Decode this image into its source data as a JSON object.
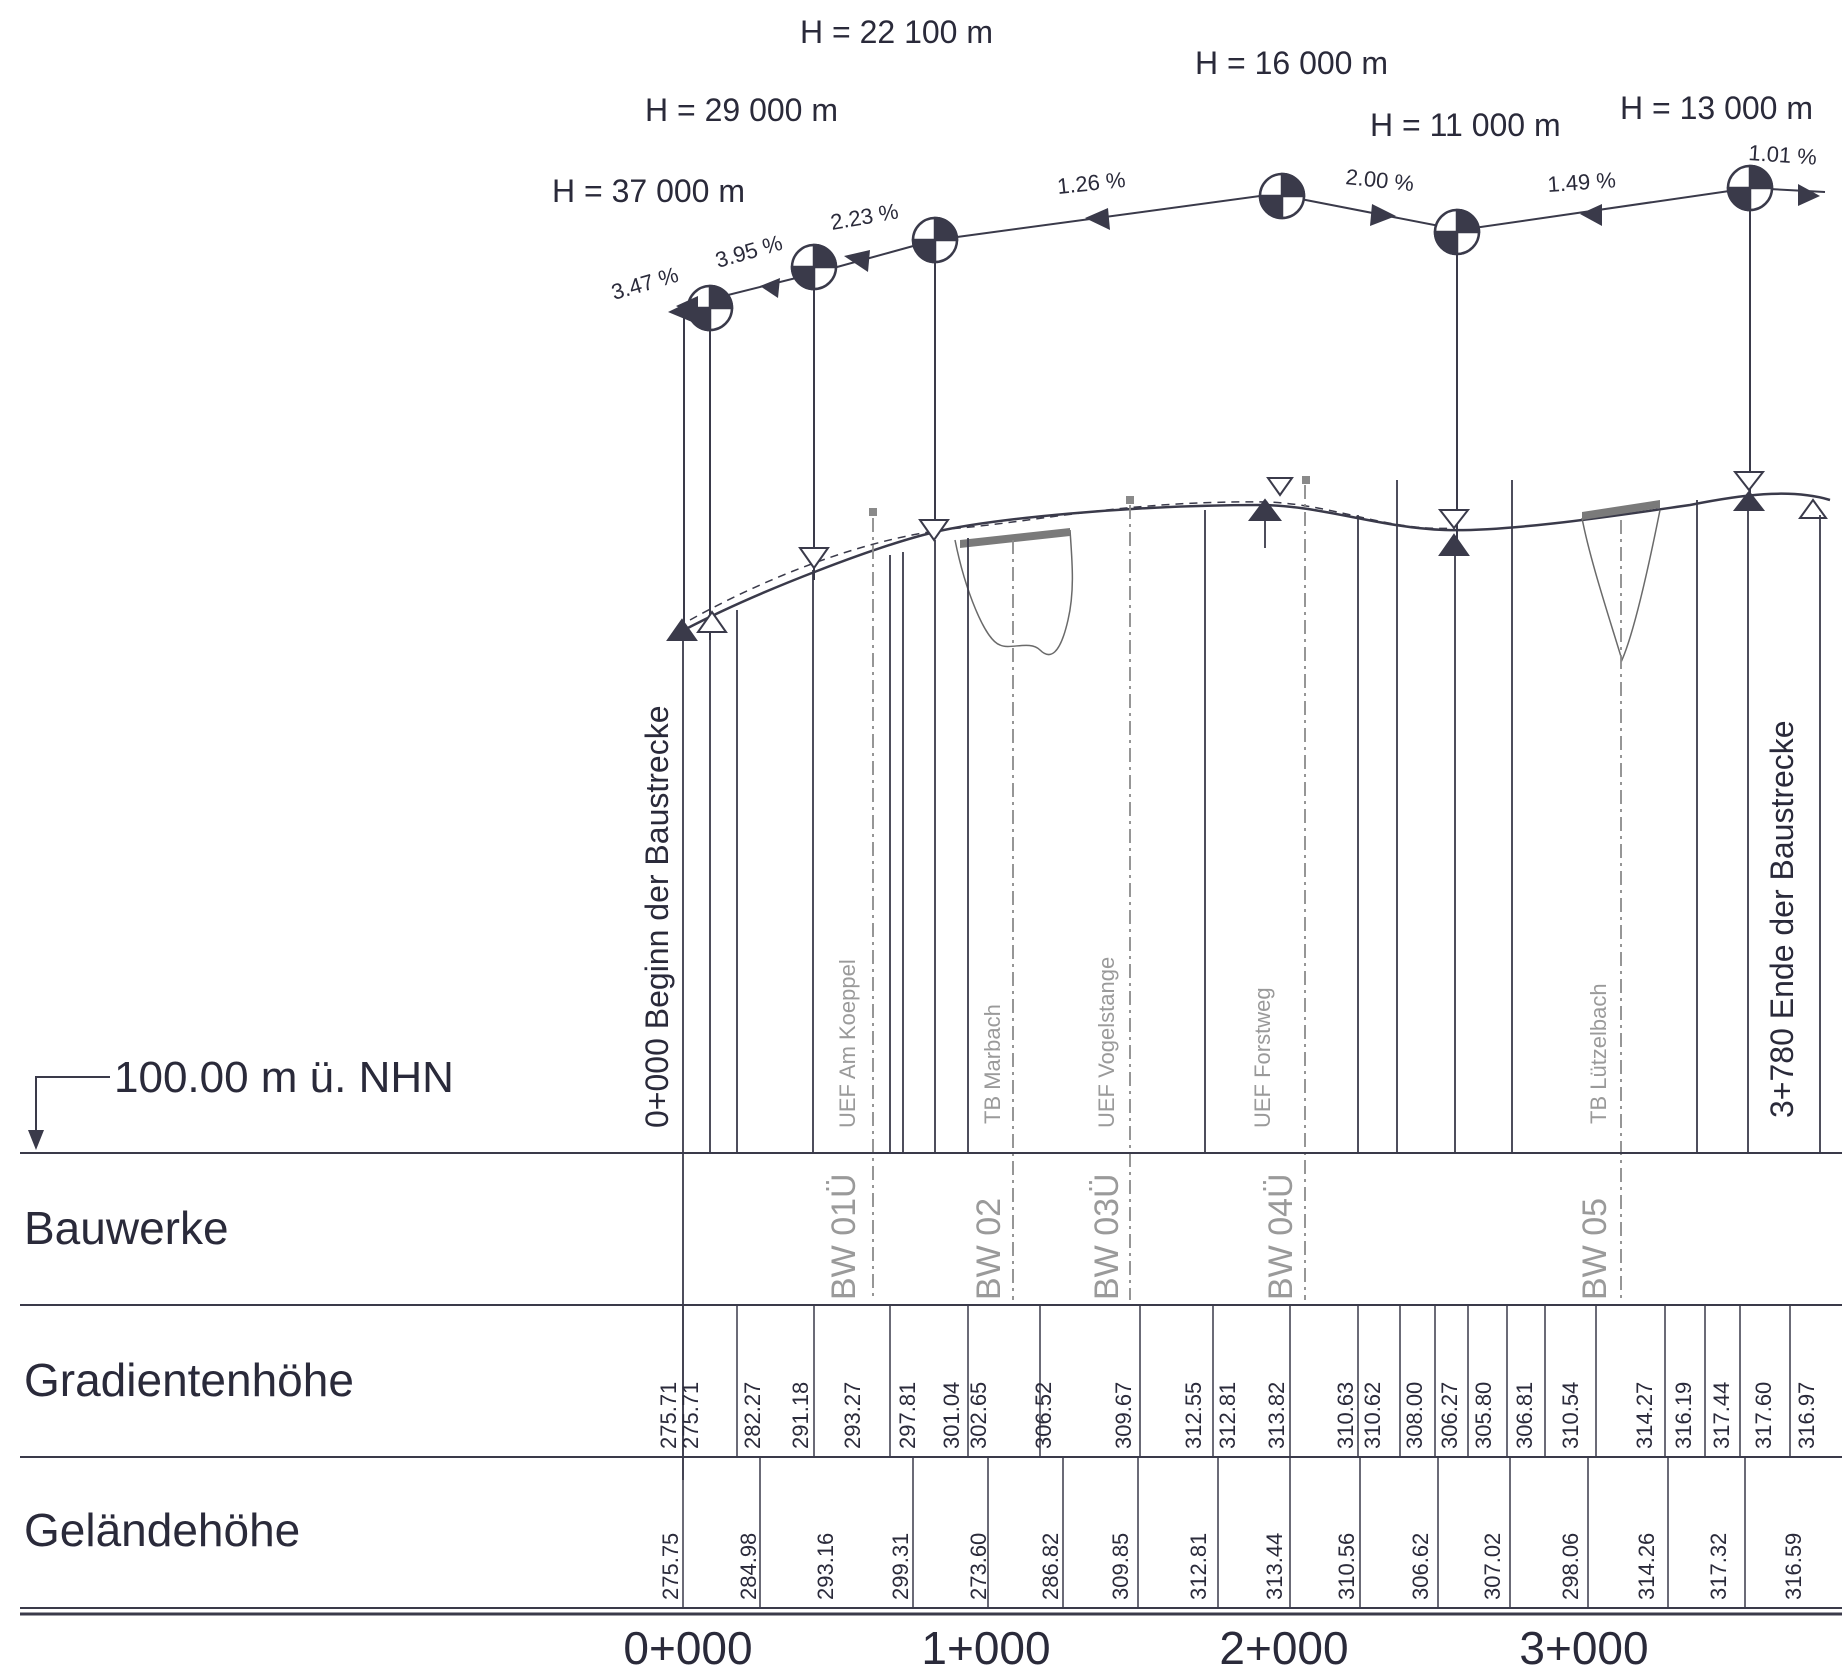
{
  "datum": {
    "label": "100.00 m ü. NHN"
  },
  "start_label": "0+000 Beginn der Baustrecke",
  "end_label": "3+780 Ende der Baustrecke",
  "curves": [
    {
      "text": "H = 37 000 m"
    },
    {
      "text": "H = 29 000 m"
    },
    {
      "text": "H = 22 100 m"
    },
    {
      "text": "H = 16 000 m"
    },
    {
      "text": "H = 11 000 m"
    },
    {
      "text": "H = 13 000 m"
    }
  ],
  "gradients": [
    {
      "text": "3.47 %"
    },
    {
      "text": "3.95 %"
    },
    {
      "text": "2.23 %"
    },
    {
      "text": "1.26 %"
    },
    {
      "text": "2.00 %"
    },
    {
      "text": "1.49 %"
    },
    {
      "text": "1.01 %"
    }
  ],
  "structure_names": [
    {
      "text": "UEF Am Koeppel"
    },
    {
      "text": "TB Marbach"
    },
    {
      "text": "UEF Vogelstange"
    },
    {
      "text": "UEF Forstweg"
    },
    {
      "text": "TB Lützelbach"
    }
  ],
  "rows": {
    "bauwerke": "Bauwerke",
    "gradient": "Gradientenhöhe",
    "terrain": "Geländehöhe"
  },
  "bauwerke": [
    {
      "text": "BW 01Ü"
    },
    {
      "text": "BW 02"
    },
    {
      "text": "BW 03Ü"
    },
    {
      "text": "BW 04Ü"
    },
    {
      "text": "BW 05"
    }
  ],
  "gradient_heights": [
    "275.71",
    "275.71",
    "282.27",
    "291.18",
    "293.27",
    "297.81",
    "301.04",
    "302.65",
    "306.52",
    "309.67",
    "312.55",
    "312.81",
    "313.82",
    "310.63",
    "310.62",
    "308.00",
    "306.27",
    "305.80",
    "306.81",
    "310.54",
    "314.27",
    "316.19",
    "317.44",
    "317.60",
    "316.97"
  ],
  "terrain_heights": [
    "275.75",
    "284.98",
    "293.16",
    "299.31",
    "273.60",
    "286.82",
    "309.85",
    "312.81",
    "313.44",
    "310.56",
    "306.62",
    "307.02",
    "298.06",
    "314.26",
    "317.32",
    "316.59"
  ],
  "stations": [
    "0+000",
    "1+000",
    "2+000",
    "3+000"
  ]
}
